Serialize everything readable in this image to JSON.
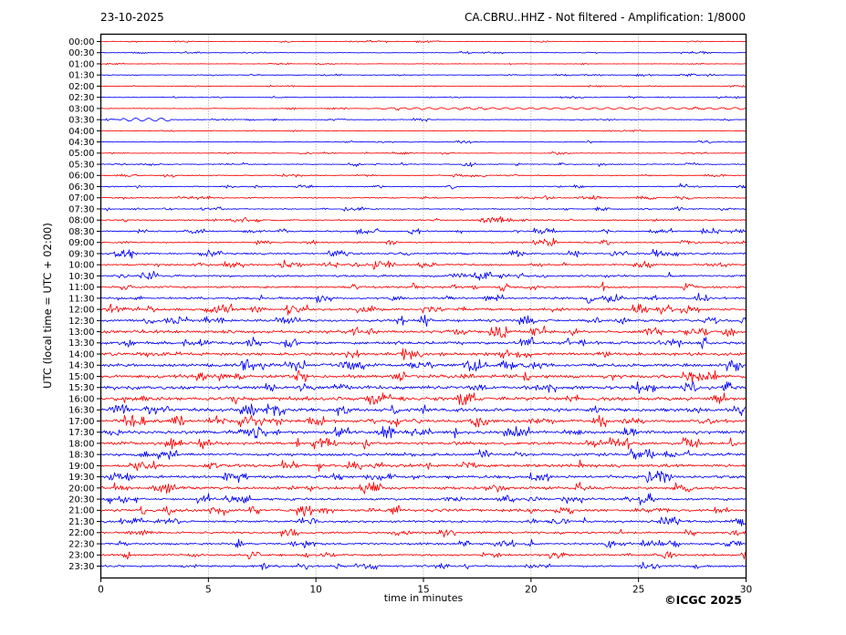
{
  "header": {
    "date": "23-10-2025",
    "title": "CA.CBRU..HHZ - Not filtered - Amplification: 1/8000"
  },
  "footer": {
    "credit": "©ICGC 2025"
  },
  "colors": {
    "trace_red": "#ff0000",
    "trace_blue": "#0000ff",
    "grid": "#777777",
    "axis": "#000000",
    "background": "#ffffff",
    "text": "#000000"
  },
  "chart_data": {
    "type": "line",
    "subtype": "helicorder-daily-seismogram",
    "title": "CA.CBRU..HHZ - Not filtered - Amplification: 1/8000",
    "date": "23-10-2025",
    "station": "CA.CBRU..HHZ",
    "filter": "Not filtered",
    "amplification": "1/8000",
    "xlabel": "time in minutes",
    "ylabel": "UTC (local time = UTC + 02:00)",
    "xlim": [
      0,
      30
    ],
    "x_ticks": [
      0,
      5,
      10,
      15,
      20,
      25,
      30
    ],
    "grid_minutes": [
      5,
      10,
      15,
      20,
      25
    ],
    "grid_on": true,
    "minutes_per_row": 30,
    "legend": "traces alternate red/blue per half hour, red on the hour",
    "rows": [
      {
        "label": "00:00",
        "color": "red",
        "amplitude": 0.14
      },
      {
        "label": "00:30",
        "color": "blue",
        "amplitude": 0.15
      },
      {
        "label": "01:00",
        "color": "red",
        "amplitude": 0.14
      },
      {
        "label": "01:30",
        "color": "blue",
        "amplitude": 0.17
      },
      {
        "label": "02:00",
        "color": "red",
        "amplitude": 0.14
      },
      {
        "label": "02:30",
        "color": "blue",
        "amplitude": 0.15
      },
      {
        "label": "03:00",
        "color": "red",
        "amplitude": 0.18
      },
      {
        "label": "03:30",
        "color": "blue",
        "amplitude": 0.18
      },
      {
        "label": "04:00",
        "color": "red",
        "amplitude": 0.15
      },
      {
        "label": "04:30",
        "color": "blue",
        "amplitude": 0.17
      },
      {
        "label": "05:00",
        "color": "red",
        "amplitude": 0.16
      },
      {
        "label": "05:30",
        "color": "blue",
        "amplitude": 0.24
      },
      {
        "label": "06:00",
        "color": "red",
        "amplitude": 0.25
      },
      {
        "label": "06:30",
        "color": "blue",
        "amplitude": 0.27
      },
      {
        "label": "07:00",
        "color": "red",
        "amplitude": 0.3
      },
      {
        "label": "07:30",
        "color": "blue",
        "amplitude": 0.28
      },
      {
        "label": "08:00",
        "color": "red",
        "amplitude": 0.33
      },
      {
        "label": "08:30",
        "color": "blue",
        "amplitude": 0.35
      },
      {
        "label": "09:00",
        "color": "red",
        "amplitude": 0.38
      },
      {
        "label": "09:30",
        "color": "blue",
        "amplitude": 0.48
      },
      {
        "label": "10:00",
        "color": "red",
        "amplitude": 0.48
      },
      {
        "label": "10:30",
        "color": "blue",
        "amplitude": 0.52
      },
      {
        "label": "11:00",
        "color": "red",
        "amplitude": 0.52
      },
      {
        "label": "11:30",
        "color": "blue",
        "amplitude": 0.56
      },
      {
        "label": "12:00",
        "color": "red",
        "amplitude": 0.6
      },
      {
        "label": "12:30",
        "color": "blue",
        "amplitude": 0.65
      },
      {
        "label": "13:00",
        "color": "red",
        "amplitude": 0.78
      },
      {
        "label": "13:30",
        "color": "blue",
        "amplitude": 0.8
      },
      {
        "label": "14:00",
        "color": "red",
        "amplitude": 0.8
      },
      {
        "label": "14:30",
        "color": "blue",
        "amplitude": 0.85
      },
      {
        "label": "15:00",
        "color": "red",
        "amplitude": 0.85
      },
      {
        "label": "15:30",
        "color": "blue",
        "amplitude": 0.9
      },
      {
        "label": "16:00",
        "color": "red",
        "amplitude": 0.92
      },
      {
        "label": "16:30",
        "color": "blue",
        "amplitude": 0.9
      },
      {
        "label": "17:00",
        "color": "red",
        "amplitude": 0.85
      },
      {
        "label": "17:30",
        "color": "blue",
        "amplitude": 0.85
      },
      {
        "label": "18:00",
        "color": "red",
        "amplitude": 0.8
      },
      {
        "label": "18:30",
        "color": "blue",
        "amplitude": 0.75
      },
      {
        "label": "19:00",
        "color": "red",
        "amplitude": 0.75
      },
      {
        "label": "19:30",
        "color": "blue",
        "amplitude": 0.75
      },
      {
        "label": "20:00",
        "color": "red",
        "amplitude": 0.7
      },
      {
        "label": "20:30",
        "color": "blue",
        "amplitude": 0.65
      },
      {
        "label": "21:00",
        "color": "red",
        "amplitude": 0.7
      },
      {
        "label": "21:30",
        "color": "blue",
        "amplitude": 0.6
      },
      {
        "label": "22:00",
        "color": "red",
        "amplitude": 0.56
      },
      {
        "label": "22:30",
        "color": "blue",
        "amplitude": 0.52
      },
      {
        "label": "23:00",
        "color": "red",
        "amplitude": 0.52
      },
      {
        "label": "23:30",
        "color": "blue",
        "amplitude": 0.52
      }
    ],
    "events": [
      {
        "row": "03:30",
        "start_min": 1.0,
        "end_min": 3.3,
        "type": "low-frequency-wave",
        "amplitude": 0.35
      },
      {
        "row": "03:00",
        "start_min": 13.0,
        "end_min": 30.0,
        "type": "low-frequency-wave",
        "amplitude": 0.2
      }
    ]
  }
}
